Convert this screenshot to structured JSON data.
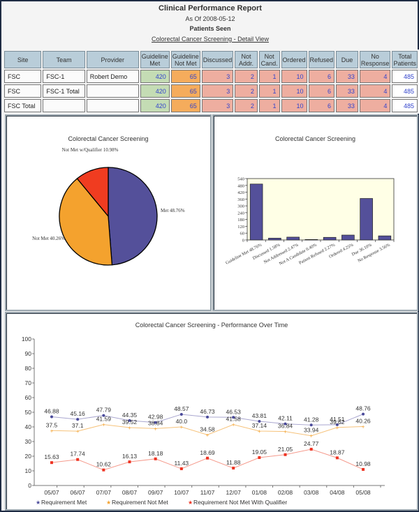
{
  "header": {
    "title": "Clinical Performance Report",
    "as_of": "As Of 2008-05-12",
    "subtitle": "Patients Seen",
    "link": "Colorectal Cancer Screening - Detail View"
  },
  "table": {
    "columns": [
      "Site",
      "Team",
      "Provider",
      "Guideline Met",
      "Guideline Not Met",
      "Discussed",
      "Not Addr.",
      "Not Cand.",
      "Ordered",
      "Refused",
      "Due",
      "No Response",
      "Total Patients"
    ],
    "rows": [
      {
        "site": "FSC",
        "team": "FSC-1",
        "provider": "Robert Demo",
        "values": [
          "420",
          "65",
          "3",
          "2",
          "1",
          "10",
          "6",
          "33",
          "4",
          "485"
        ]
      },
      {
        "site": "FSC",
        "team": "FSC-1 Total",
        "provider": "",
        "values": [
          "420",
          "65",
          "3",
          "2",
          "1",
          "10",
          "6",
          "33",
          "4",
          "485"
        ]
      },
      {
        "site": "FSC Total",
        "team": "",
        "provider": "",
        "values": [
          "420",
          "65",
          "3",
          "2",
          "1",
          "10",
          "6",
          "33",
          "4",
          "485"
        ]
      }
    ]
  },
  "colors": {
    "met": "#54509a",
    "not_met": "#f4a22e",
    "qualifier": "#f03c20",
    "bar_fill": "#54509a",
    "plot_bg": "#ffffe6"
  },
  "chart_data": [
    {
      "type": "pie",
      "title": "Colorectal Cancer Screening",
      "slices": [
        {
          "label": "Met 48.76%",
          "value": 48.76
        },
        {
          "label": "Not Met 40.26%",
          "value": 40.26
        },
        {
          "label": "Not Met w/Qualifier 10.98%",
          "value": 10.98
        }
      ]
    },
    {
      "type": "bar",
      "title": "Colorectal Cancer Screening",
      "categories": [
        "Guideline Met 48.76%",
        "Discussed 1.58%",
        "Not Addressed 2.47%",
        "Not A Candidate 0.40%",
        "Patient Refused 2.27%",
        "Ordered 4.25%",
        "Due 36.10%",
        "No Response 3.56%"
      ],
      "values": [
        492,
        16,
        25,
        4,
        23,
        43,
        365,
        36
      ],
      "yticks": [
        "0",
        "60",
        "120",
        "180",
        "240",
        "300",
        "360",
        "420",
        "480",
        "540"
      ],
      "ylim": [
        0,
        540
      ],
      "xlabel": "",
      "ylabel": ""
    },
    {
      "type": "line",
      "title": "Colorectal Cancer Screening - Performance Over Time",
      "x": [
        "05/07",
        "06/07",
        "07/07",
        "08/07",
        "09/07",
        "10/07",
        "11/07",
        "12/07",
        "01/08",
        "02/08",
        "03/08",
        "04/08",
        "05/08"
      ],
      "yticks": [
        "0",
        "10",
        "20",
        "30",
        "40",
        "50",
        "60",
        "70",
        "80",
        "90",
        "100"
      ],
      "ylim": [
        0,
        100
      ],
      "legend_position": "bottom-left",
      "series": [
        {
          "name": "Requirement Met",
          "values": [
            46.88,
            45.16,
            47.79,
            44.35,
            42.98,
            48.57,
            46.73,
            46.53,
            43.81,
            42.11,
            41.28,
            41.51,
            48.76
          ],
          "labels": [
            "46.88",
            "45.16",
            "47.79",
            "44.35",
            "42.98",
            "48.57",
            "46.73",
            "46.53",
            "43.81",
            "42.11",
            "41.28",
            "41.51",
            "48.76"
          ]
        },
        {
          "name": "Requirement Not Met",
          "values": [
            37.5,
            37.1,
            41.59,
            39.52,
            38.84,
            40.0,
            34.58,
            41.58,
            37.14,
            36.84,
            33.94,
            39.62,
            40.26
          ],
          "labels": [
            "37.5",
            "37.1",
            "41.59",
            "39.52",
            "38.84",
            "40.0",
            "34.58",
            "41.58",
            "37.14",
            "36.84",
            "33.94",
            "39.62",
            "40.26"
          ]
        },
        {
          "name": "Requirement Not Met With Qualifier",
          "values": [
            15.63,
            17.74,
            10.62,
            16.13,
            18.18,
            11.43,
            18.69,
            11.88,
            19.05,
            21.05,
            24.77,
            18.87,
            10.98
          ],
          "labels": [
            "15.63",
            "17.74",
            "10.62",
            "16.13",
            "18.18",
            "11.43",
            "18.69",
            "11.88",
            "19.05",
            "21.05",
            "24.77",
            "18.87",
            "10.98"
          ]
        }
      ],
      "series_colors": [
        "#4a4a9a",
        "#f4a22e",
        "#ee3322"
      ],
      "line_colors": [
        "#a9a6cf",
        "#f6c27a",
        "#f59a8c"
      ]
    }
  ]
}
